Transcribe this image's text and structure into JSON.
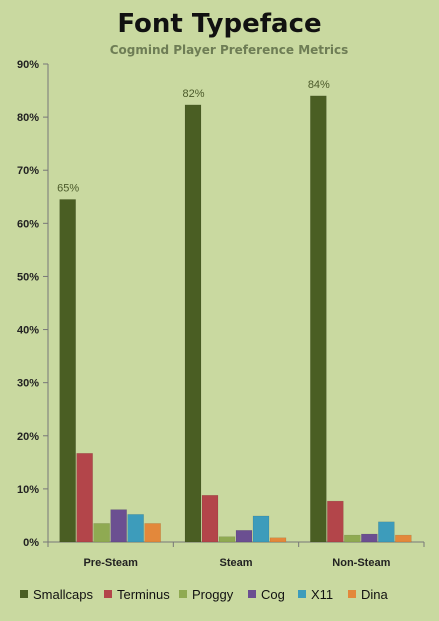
{
  "chart_data": {
    "type": "bar",
    "title": "Font Typeface",
    "subtitle": "Cogmind Player Preference Metrics",
    "categories": [
      "Pre-Steam",
      "Steam",
      "Non-Steam"
    ],
    "series": [
      {
        "name": "Smallcaps",
        "color": "#4a5e23",
        "values": [
          64.5,
          82.3,
          84.0
        ],
        "labels": [
          "65%",
          "82%",
          "84%"
        ]
      },
      {
        "name": "Terminus",
        "color": "#b3454a",
        "values": [
          16.7,
          8.8,
          7.7
        ],
        "labels": [
          "",
          "",
          ""
        ]
      },
      {
        "name": "Proggy",
        "color": "#8faa52",
        "values": [
          3.5,
          1.0,
          1.3
        ],
        "labels": [
          "",
          "",
          ""
        ]
      },
      {
        "name": "Cog",
        "color": "#6b4f91",
        "values": [
          6.1,
          2.2,
          1.5
        ],
        "labels": [
          "",
          "",
          ""
        ]
      },
      {
        "name": "X11",
        "color": "#3d9cbb",
        "values": [
          5.2,
          4.9,
          3.8
        ],
        "labels": [
          "",
          "",
          ""
        ]
      },
      {
        "name": "Dina",
        "color": "#e3883b",
        "values": [
          3.5,
          0.8,
          1.3
        ],
        "labels": [
          "",
          "",
          ""
        ]
      }
    ],
    "yticks": [
      "0%",
      "10%",
      "20%",
      "30%",
      "40%",
      "50%",
      "60%",
      "70%",
      "80%",
      "90%"
    ],
    "ylim": [
      0,
      90
    ],
    "grid": false,
    "legend_position": "bottom"
  }
}
